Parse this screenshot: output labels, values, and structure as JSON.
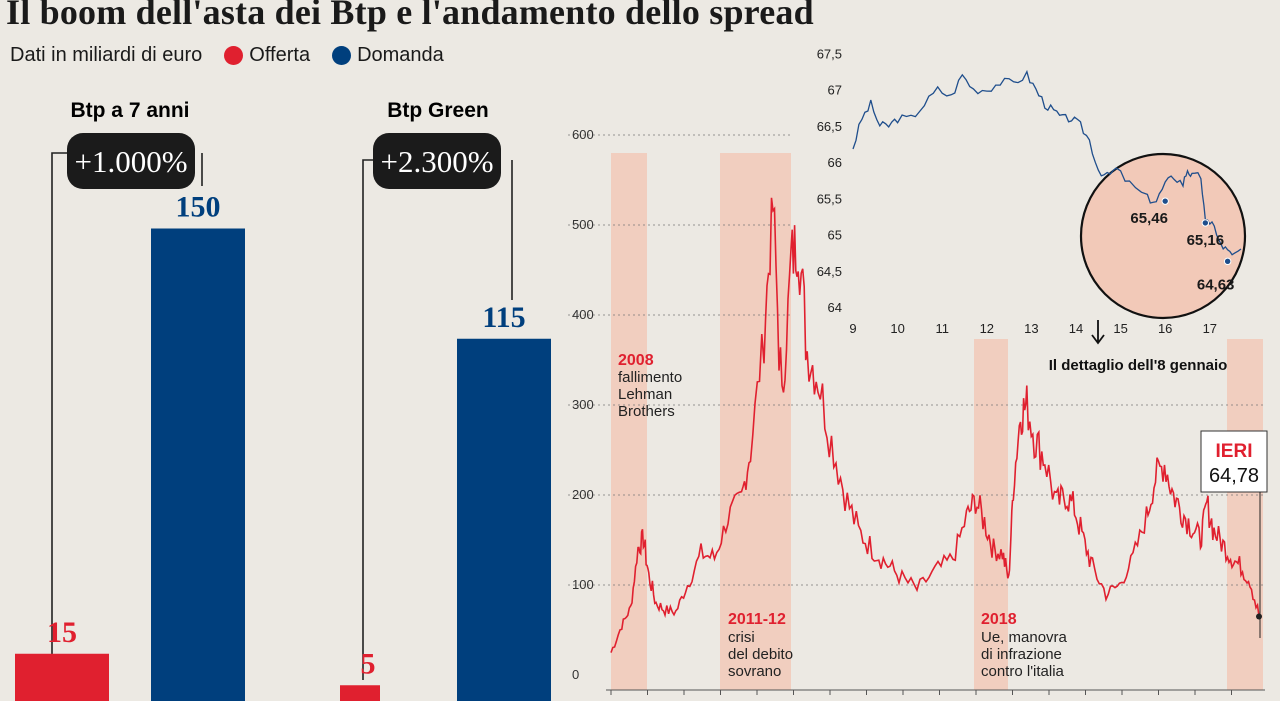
{
  "title": "Il boom dell'asta dei Btp e l'andamento dello spread",
  "legend": {
    "unit_text": "Dati in miliardi di euro",
    "offer_label": "Offerta",
    "demand_label": "Domanda",
    "offer_color": "#e0202f",
    "demand_color": "#003f7d"
  },
  "chart_data": [
    {
      "type": "bar",
      "title": "Btp a 7 anni",
      "badge": "+1.000%",
      "categories": [
        "Offerta",
        "Domanda"
      ],
      "values": [
        15,
        150
      ],
      "value_labels": [
        "15",
        "150"
      ]
    },
    {
      "type": "bar",
      "title": "Btp Green",
      "badge": "+2.300%",
      "categories": [
        "Offerta",
        "Domanda"
      ],
      "values": [
        5,
        115
      ],
      "value_labels": [
        "5",
        "115"
      ]
    },
    {
      "type": "line",
      "title": "",
      "ylim": [
        0,
        600
      ],
      "yticks": [
        "0",
        "100",
        "200",
        "300",
        "400",
        "500",
        "600"
      ],
      "highlight_periods": [
        "2008",
        "2011-12",
        "2018",
        "IERI"
      ],
      "annotations": [
        {
          "year": "2008",
          "text": [
            "fallimento",
            "Lehman",
            "Brothers"
          ]
        },
        {
          "year": "2011-12",
          "text": [
            "crisi",
            "del debito",
            "sovrano"
          ]
        },
        {
          "year": "2018",
          "text": [
            "Ue, manovra",
            "di infrazione",
            "contro l'italia"
          ]
        }
      ],
      "last_label": "IERI",
      "last_value": "64,78",
      "anchors": [
        [
          0,
          25
        ],
        [
          0.12,
          55
        ],
        [
          0.22,
          75
        ],
        [
          0.3,
          140
        ],
        [
          0.36,
          152
        ],
        [
          0.42,
          110
        ],
        [
          0.5,
          80
        ],
        [
          0.6,
          72
        ],
        [
          0.72,
          70
        ],
        [
          0.85,
          100
        ],
        [
          1.0,
          135
        ],
        [
          1.15,
          130
        ],
        [
          1.3,
          175
        ],
        [
          1.45,
          195
        ],
        [
          1.55,
          250
        ],
        [
          1.7,
          380
        ],
        [
          1.8,
          520
        ],
        [
          1.9,
          300
        ],
        [
          2.0,
          460
        ],
        [
          2.08,
          485
        ],
        [
          2.18,
          360
        ],
        [
          2.3,
          330
        ],
        [
          2.45,
          260
        ],
        [
          2.6,
          200
        ],
        [
          2.75,
          160
        ],
        [
          2.9,
          140
        ],
        [
          3.05,
          125
        ],
        [
          3.2,
          110
        ],
        [
          3.4,
          95
        ],
        [
          3.6,
          115
        ],
        [
          3.8,
          130
        ],
        [
          3.95,
          175
        ],
        [
          4.05,
          195
        ],
        [
          4.15,
          170
        ],
        [
          4.25,
          140
        ],
        [
          4.35,
          135
        ],
        [
          4.42,
          105
        ],
        [
          4.47,
          210
        ],
        [
          4.55,
          290
        ],
        [
          4.62,
          300
        ],
        [
          4.72,
          260
        ],
        [
          4.82,
          240
        ],
        [
          4.95,
          190
        ],
        [
          5.05,
          200
        ],
        [
          5.15,
          185
        ],
        [
          5.25,
          150
        ],
        [
          5.35,
          120
        ],
        [
          5.5,
          90
        ],
        [
          5.65,
          100
        ],
        [
          5.8,
          130
        ],
        [
          5.95,
          175
        ],
        [
          6.05,
          220
        ],
        [
          6.15,
          235
        ],
        [
          6.25,
          200
        ],
        [
          6.35,
          180
        ],
        [
          6.45,
          165
        ],
        [
          6.55,
          150
        ],
        [
          6.62,
          190
        ],
        [
          6.7,
          160
        ],
        [
          6.8,
          145
        ],
        [
          6.9,
          130
        ],
        [
          7.0,
          120
        ],
        [
          7.1,
          105
        ],
        [
          7.2,
          65
        ]
      ]
    },
    {
      "type": "line",
      "title": "",
      "xticks": [
        "9",
        "10",
        "11",
        "12",
        "13",
        "14",
        "15",
        "16",
        "17"
      ],
      "yticks": [
        "64",
        "64,5",
        "65",
        "65,5",
        "66",
        "66,5",
        "67",
        "67,5"
      ],
      "ylim": [
        64,
        67.5
      ],
      "xlim": [
        9,
        17.75
      ],
      "caption": "Il dettaglio dell'8 gennaio",
      "point_labels": [
        {
          "x": 16.0,
          "y": 65.46,
          "label": "65,46"
        },
        {
          "x": 16.9,
          "y": 65.16,
          "label": "65,16"
        },
        {
          "x": 17.4,
          "y": 64.63,
          "label": "64,63"
        }
      ],
      "anchors": [
        [
          9.0,
          66.2
        ],
        [
          9.2,
          66.6
        ],
        [
          9.4,
          66.8
        ],
        [
          9.6,
          66.5
        ],
        [
          9.8,
          66.5
        ],
        [
          10.0,
          66.6
        ],
        [
          10.3,
          66.6
        ],
        [
          10.6,
          66.8
        ],
        [
          10.9,
          67.0
        ],
        [
          11.2,
          66.9
        ],
        [
          11.45,
          67.2
        ],
        [
          11.7,
          67.0
        ],
        [
          12.0,
          67.0
        ],
        [
          12.3,
          67.1
        ],
        [
          12.6,
          67.1
        ],
        [
          12.9,
          67.2
        ],
        [
          13.1,
          67.0
        ],
        [
          13.3,
          66.8
        ],
        [
          13.5,
          66.7
        ],
        [
          13.7,
          66.6
        ],
        [
          13.9,
          66.6
        ],
        [
          14.1,
          66.5
        ],
        [
          14.3,
          66.3
        ],
        [
          14.5,
          65.9
        ],
        [
          14.7,
          65.8
        ],
        [
          14.9,
          65.9
        ],
        [
          15.2,
          65.7
        ],
        [
          15.6,
          65.5
        ],
        [
          15.8,
          65.46
        ],
        [
          16.0,
          65.7
        ],
        [
          16.2,
          65.8
        ],
        [
          16.4,
          65.7
        ],
        [
          16.5,
          65.9
        ],
        [
          16.6,
          65.8
        ],
        [
          16.8,
          65.8
        ],
        [
          16.9,
          65.16
        ],
        [
          17.05,
          65.2
        ],
        [
          17.2,
          64.9
        ],
        [
          17.35,
          64.8
        ],
        [
          17.5,
          64.7
        ],
        [
          17.7,
          64.8
        ]
      ]
    }
  ]
}
